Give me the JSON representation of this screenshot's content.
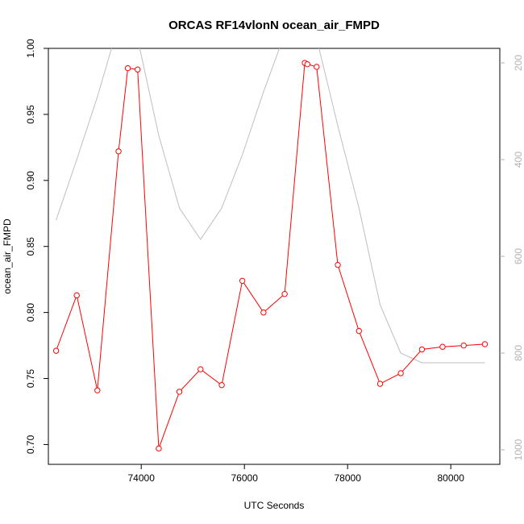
{
  "chart_data": {
    "type": "line",
    "title": "ORCAS RF14vlonN ocean_air_FMPD",
    "xlabel": "UTC Seconds",
    "ylabel": "ocean_air_FMPD",
    "xlim": [
      72200,
      80950
    ],
    "ylim": [
      0.685,
      1.0
    ],
    "x_ticks": [
      74000,
      76000,
      78000,
      80000
    ],
    "x_tick_labels": [
      "74000",
      "76000",
      "78000",
      "80000"
    ],
    "y_ticks": [
      0.7,
      0.75,
      0.8,
      0.85,
      0.9,
      0.95,
      1.0
    ],
    "y_tick_labels": [
      "0.70",
      "0.75",
      "0.80",
      "0.85",
      "0.90",
      "0.95",
      "1.00"
    ],
    "y2_lim": [
      1030,
      170
    ],
    "y2_ticks": [
      200,
      400,
      600,
      800,
      1000
    ],
    "y2_tick_labels": [
      "200",
      "400",
      "600",
      "800",
      "1000"
    ],
    "grid": false,
    "colors": {
      "primary": "#ff0000",
      "secondary": "#bebebe",
      "axis": "#000000",
      "right_axis": "#b3b3b3"
    },
    "series": [
      {
        "axis": "left",
        "marker": "open-circle",
        "x": [
          72350,
          72750,
          73150,
          73560,
          73740,
          73930,
          74340,
          74740,
          75150,
          75560,
          75960,
          76370,
          76780,
          77170,
          77220,
          77400,
          77810,
          78220,
          78630,
          79030,
          79440,
          79840,
          80250,
          80660
        ],
        "y": [
          0.771,
          0.813,
          0.741,
          0.922,
          0.985,
          0.984,
          0.697,
          0.74,
          0.757,
          0.745,
          0.824,
          0.8,
          0.814,
          0.989,
          0.988,
          0.986,
          0.836,
          0.786,
          0.746,
          0.754,
          0.772,
          0.774,
          0.775,
          0.776
        ]
      },
      {
        "axis": "right",
        "x": [
          72350,
          72750,
          73150,
          73480,
          73930,
          74340,
          74740,
          75150,
          75560,
          75960,
          76370,
          76780,
          77200,
          77400,
          77810,
          78220,
          78630,
          79030,
          79440,
          79840,
          80250,
          80660
        ],
        "y": [
          525,
          400,
          270,
          150,
          150,
          350,
          500,
          565,
          500,
          390,
          260,
          140,
          140,
          150,
          330,
          500,
          700,
          800,
          820,
          820,
          820,
          820
        ]
      }
    ]
  }
}
